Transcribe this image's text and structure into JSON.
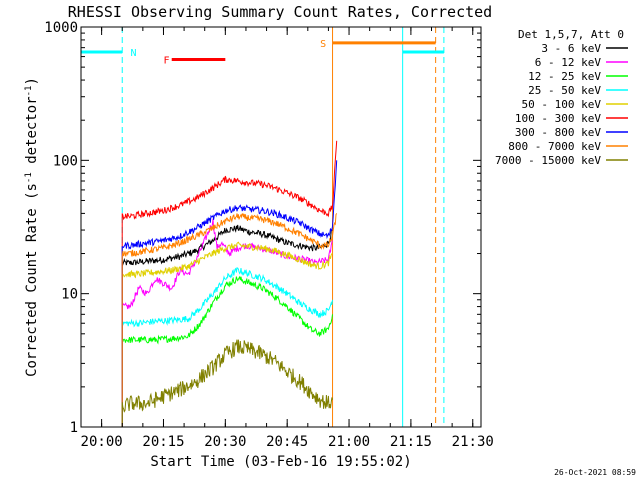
{
  "chart_data": {
    "type": "line",
    "title": "RHESSI Observing Summary Count Rates, Corrected",
    "xlabel": "Start Time (03-Feb-16 19:55:02)",
    "ylabel": "Corrected Count Rate (s⁻¹ detector⁻¹)",
    "ylabel_parts": [
      "Corrected Count Rate (s",
      "-1",
      " detector",
      "-1",
      ")"
    ],
    "x_unit": "minutes since 19:55:02",
    "xlim": [
      0,
      97
    ],
    "ylim": [
      1,
      1000
    ],
    "y_scale": "log",
    "xticks": [
      {
        "value": 5,
        "label": "20:00"
      },
      {
        "value": 20,
        "label": "20:15"
      },
      {
        "value": 35,
        "label": "20:30"
      },
      {
        "value": 50,
        "label": "20:45"
      },
      {
        "value": 65,
        "label": "21:00"
      },
      {
        "value": 80,
        "label": "21:15"
      },
      {
        "value": 95,
        "label": "21:30"
      }
    ],
    "yticks": [
      {
        "value": 1,
        "label": "1"
      },
      {
        "value": 10,
        "label": "10"
      },
      {
        "value": 100,
        "label": "100"
      },
      {
        "value": 1000,
        "label": "1000"
      }
    ],
    "legend_title": "Det 1,5,7, Att 0",
    "legend_position": "right",
    "series": [
      {
        "name": "3 - 6 keV",
        "color": "#000000",
        "x": [
          10,
          12,
          16,
          20,
          24,
          28,
          32,
          35,
          38,
          41,
          44,
          47,
          50,
          53,
          56,
          58,
          60,
          61
        ],
        "values": [
          17,
          17,
          17.5,
          18,
          19,
          21,
          25,
          30,
          31,
          29,
          28,
          26,
          24,
          23,
          22,
          22,
          24,
          30
        ]
      },
      {
        "name": "6 - 12 keV",
        "color": "#ff00ff",
        "x": [
          10,
          12,
          14,
          16,
          18,
          20,
          22,
          24,
          26,
          28,
          30,
          32,
          33,
          34,
          36,
          38,
          40,
          43,
          46,
          50,
          54,
          57,
          60,
          61
        ],
        "values": [
          8,
          8,
          11,
          10,
          13,
          12,
          11,
          15,
          14,
          18,
          25,
          35,
          22,
          24,
          20,
          22,
          23,
          22,
          21,
          19,
          18,
          17,
          18,
          25
        ]
      },
      {
        "name": "12 - 25 keV",
        "color": "#00ff00",
        "x": [
          10,
          14,
          18,
          22,
          26,
          29,
          32,
          35,
          38,
          41,
          44,
          47,
          50,
          53,
          56,
          58,
          60,
          61
        ],
        "values": [
          4.5,
          4.5,
          4.5,
          4.6,
          4.8,
          6,
          8.5,
          11.5,
          13,
          12,
          11,
          9.5,
          8,
          6.5,
          5.3,
          5,
          5.5,
          7
        ]
      },
      {
        "name": "25 - 50 keV",
        "color": "#00ffff",
        "x": [
          10,
          14,
          18,
          22,
          26,
          29,
          32,
          35,
          38,
          41,
          44,
          47,
          50,
          53,
          56,
          58,
          60,
          61
        ],
        "values": [
          6,
          6,
          6.2,
          6.3,
          6.5,
          7.8,
          10,
          13,
          15,
          14,
          13,
          11.5,
          10,
          8.5,
          7.5,
          7,
          7.5,
          9
        ]
      },
      {
        "name": "50 - 100 keV",
        "color": "#e0d000",
        "x": [
          10,
          14,
          18,
          22,
          26,
          29,
          32,
          35,
          38,
          41,
          44,
          47,
          50,
          53,
          56,
          58,
          60,
          61
        ],
        "values": [
          14,
          14,
          14.5,
          15,
          16,
          18,
          20,
          22,
          23,
          22.5,
          22,
          21,
          19.5,
          18,
          16.5,
          16,
          17,
          20
        ]
      },
      {
        "name": "100 - 300 keV",
        "color": "#ff0000",
        "x": [
          10,
          12,
          16,
          20,
          24,
          28,
          32,
          35,
          38,
          41,
          44,
          47,
          50,
          53,
          56,
          58,
          60,
          61,
          62
        ],
        "values": [
          38,
          38,
          40,
          42,
          46,
          52,
          62,
          72,
          70,
          68,
          66,
          62,
          57,
          52,
          46,
          42,
          40,
          45,
          140
        ]
      },
      {
        "name": "300 - 800 keV",
        "color": "#0000ff",
        "x": [
          10,
          12,
          16,
          20,
          24,
          28,
          32,
          35,
          38,
          41,
          44,
          47,
          50,
          53,
          56,
          58,
          60,
          61,
          62
        ],
        "values": [
          23,
          23,
          24,
          25,
          27,
          31,
          37,
          42,
          44,
          43,
          42,
          40,
          37,
          34,
          30,
          28,
          27,
          32,
          100
        ]
      },
      {
        "name": "800 - 7000 keV",
        "color": "#ff8000",
        "x": [
          10,
          12,
          16,
          20,
          24,
          28,
          32,
          35,
          38,
          41,
          44,
          47,
          50,
          53,
          56,
          58,
          60,
          61,
          62
        ],
        "values": [
          20,
          20,
          21,
          22,
          24,
          27,
          31,
          35,
          38,
          37,
          36,
          34,
          31,
          28,
          25,
          23,
          23,
          27,
          40
        ]
      },
      {
        "name": "7000 - 15000 keV",
        "color": "#808000",
        "x": [
          10,
          12,
          16,
          20,
          24,
          28,
          32,
          35,
          38,
          41,
          44,
          47,
          50,
          53,
          56,
          58,
          60,
          61
        ],
        "values": [
          1.4,
          1.5,
          1.5,
          1.7,
          1.9,
          2.2,
          2.8,
          3.5,
          4,
          3.8,
          3.5,
          3.1,
          2.6,
          2.2,
          1.8,
          1.6,
          1.5,
          1.6
        ]
      }
    ],
    "period_lines": [
      {
        "color": "#00ffff",
        "style": "solid",
        "x": 0
      },
      {
        "color": "#00ffff",
        "style": "dashed",
        "x": 10
      },
      {
        "color": "#ff8000",
        "style": "solid",
        "x": 61
      },
      {
        "color": "#00ffff",
        "style": "solid",
        "x": 78
      },
      {
        "color": "#ff8000",
        "style": "dashed",
        "x": 86
      },
      {
        "color": "#00ffff",
        "style": "dashed",
        "x": 88
      }
    ],
    "flags": [
      {
        "label": "N",
        "color": "#00ffff",
        "x_start": 0,
        "x_end": 10,
        "level": 650,
        "label_x": 12
      },
      {
        "label": "F",
        "color": "#ff0000",
        "x_start": 22,
        "x_end": 35,
        "level": 570,
        "label_x": 20
      },
      {
        "label": "S",
        "color": "#ff8000",
        "x_start": 61,
        "x_end": 86,
        "level": 760,
        "label_x": 58
      },
      {
        "label": "",
        "color": "#00ffff",
        "x_start": 78,
        "x_end": 88,
        "level": 650,
        "label_x": 78
      }
    ]
  },
  "timestamp": "26-Oct-2021 08:59"
}
